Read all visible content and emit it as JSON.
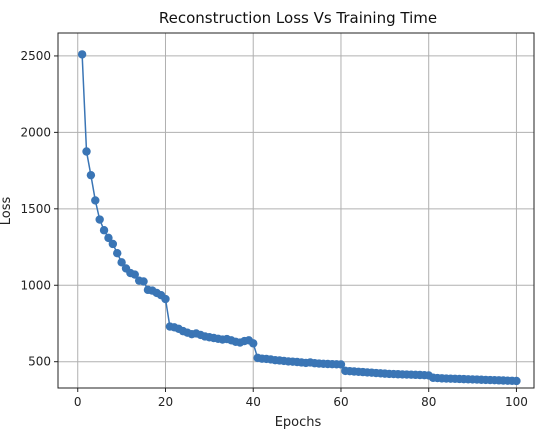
{
  "chart_data": {
    "type": "line",
    "title": "Reconstruction Loss Vs Training Time",
    "xlabel": "Epochs",
    "ylabel": "Loss",
    "xlim": [
      -4.5,
      104
    ],
    "ylim": [
      328,
      2650
    ],
    "xticks": [
      0,
      20,
      40,
      60,
      80,
      100
    ],
    "yticks": [
      500,
      1000,
      1500,
      2000,
      2500
    ],
    "grid": true,
    "marker": "circle",
    "color": "#3a75b5",
    "series": [
      {
        "x": [
          1,
          2,
          3,
          4,
          5,
          6,
          7,
          8,
          9,
          10,
          11,
          12,
          13,
          14,
          15,
          16,
          17,
          18,
          19,
          20,
          21,
          22,
          23,
          24,
          25,
          26,
          27,
          28,
          29,
          30,
          31,
          32,
          33,
          34,
          35,
          36,
          37,
          38,
          39,
          40,
          41,
          42,
          43,
          44,
          45,
          46,
          47,
          48,
          49,
          50,
          51,
          52,
          53,
          54,
          55,
          56,
          57,
          58,
          59,
          60,
          61,
          62,
          63,
          64,
          65,
          66,
          67,
          68,
          69,
          70,
          71,
          72,
          73,
          74,
          75,
          76,
          77,
          78,
          79,
          80,
          81,
          82,
          83,
          84,
          85,
          86,
          87,
          88,
          89,
          90,
          91,
          92,
          93,
          94,
          95,
          96,
          97,
          98,
          99,
          100
        ],
        "y": [
          2510,
          1875,
          1720,
          1555,
          1430,
          1360,
          1310,
          1270,
          1210,
          1150,
          1110,
          1080,
          1070,
          1030,
          1025,
          970,
          965,
          950,
          935,
          910,
          730,
          725,
          715,
          700,
          690,
          680,
          685,
          675,
          665,
          660,
          655,
          650,
          645,
          648,
          640,
          630,
          625,
          635,
          640,
          620,
          525,
          520,
          518,
          515,
          510,
          508,
          505,
          502,
          500,
          498,
          495,
          492,
          495,
          490,
          488,
          486,
          485,
          484,
          483,
          482,
          440,
          438,
          436,
          434,
          432,
          430,
          428,
          426,
          424,
          422,
          420,
          419,
          418,
          417,
          416,
          415,
          414,
          413,
          412,
          410,
          395,
          393,
          391,
          390,
          389,
          388,
          387,
          386,
          385,
          384,
          383,
          382,
          381,
          380,
          379,
          378,
          377,
          376,
          375,
          374
        ]
      }
    ]
  }
}
